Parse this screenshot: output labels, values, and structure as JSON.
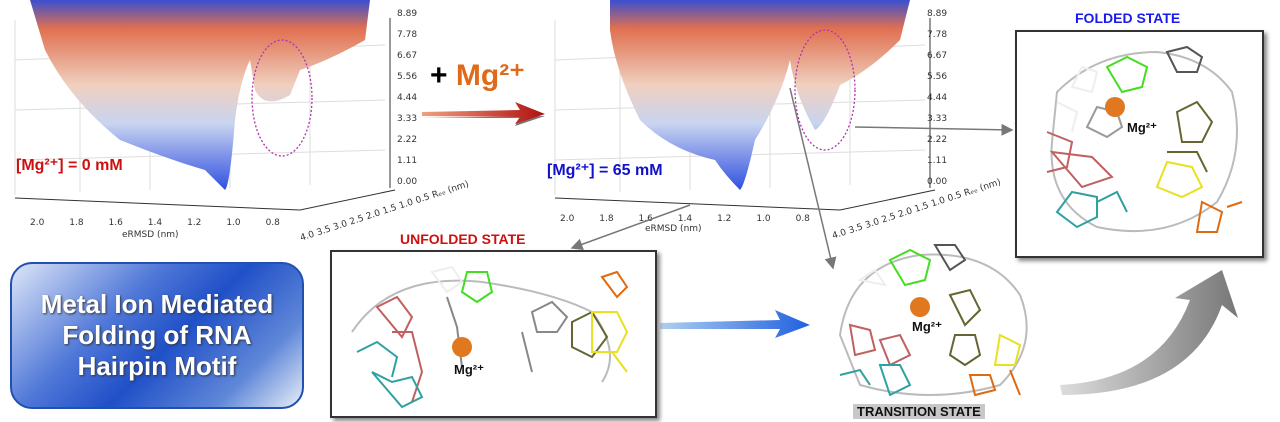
{
  "plots": [
    {
      "concentration_label": "[Mg²⁺] = 0 mM",
      "concentration_color": "#cc1111",
      "z_ticks": [
        "8.89",
        "7.78",
        "6.67",
        "5.56",
        "4.44",
        "3.33",
        "2.22",
        "1.11",
        "0.00"
      ],
      "x_ticks": [
        "2.0",
        "1.8",
        "1.6",
        "1.4",
        "1.2",
        "1.0",
        "0.8"
      ],
      "x_label": "eRMSD (nm)",
      "y_ticks": [
        "4.0",
        "3.5",
        "3.0",
        "2.5",
        "2.0",
        "1.5",
        "1.0",
        "0.5"
      ],
      "y_label": "Rₑₑ (nm)"
    },
    {
      "concentration_label": "[Mg²⁺] = 65 mM",
      "concentration_color": "#1111cc",
      "z_ticks": [
        "8.89",
        "7.78",
        "6.67",
        "5.56",
        "4.44",
        "3.33",
        "2.22",
        "1.11",
        "0.00"
      ],
      "x_ticks": [
        "2.0",
        "1.8",
        "1.6",
        "1.4",
        "1.2",
        "1.0",
        "0.8"
      ],
      "x_label": "eRMSD (nm)",
      "y_ticks": [
        "4.0",
        "3.5",
        "3.0",
        "2.5",
        "2.0",
        "1.5",
        "1.0",
        "0.5"
      ],
      "y_label": "Rₑₑ (nm)"
    }
  ],
  "add_ion": {
    "plus": "+",
    "ion": "Mg²⁺",
    "color": "#e06a1a"
  },
  "title": "Metal Ion Mediated Folding of RNA Hairpin Motif",
  "states": {
    "folded": {
      "label": "FOLDED STATE",
      "color": "#1a1aee",
      "ion": "Mg²⁺"
    },
    "unfolded": {
      "label": "UNFOLDED STATE",
      "color": "#cc1111",
      "ion": "Mg²⁺"
    },
    "transition": {
      "label": "TRANSITION STATE",
      "ion": "Mg²⁺"
    }
  }
}
